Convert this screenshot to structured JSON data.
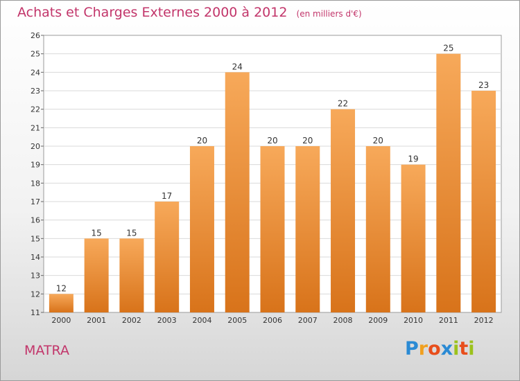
{
  "header": {
    "title": "Achats et Charges Externes 2000 à 2012",
    "subtitle": "(en milliers d'€)"
  },
  "footer": {
    "entity": "MATRA",
    "logo_letters": [
      "P",
      "r",
      "o",
      "x",
      "i",
      "t",
      "i"
    ],
    "logo_colors": [
      "#2a8ad4",
      "#f0a020",
      "#e84e1b",
      "#2a8ad4",
      "#9cc21c",
      "#e84e1b",
      "#9cc21c"
    ]
  },
  "chart_data": {
    "type": "bar",
    "categories": [
      "2000",
      "2001",
      "2002",
      "2003",
      "2004",
      "2005",
      "2006",
      "2007",
      "2008",
      "2009",
      "2010",
      "2011",
      "2012"
    ],
    "values": [
      12,
      15,
      15,
      17,
      20,
      24,
      20,
      20,
      22,
      20,
      19,
      25,
      23
    ],
    "ylim": [
      11,
      26
    ],
    "yticks": [
      11,
      12,
      13,
      14,
      15,
      16,
      17,
      18,
      19,
      20,
      21,
      22,
      23,
      24,
      25,
      26
    ],
    "grid": true,
    "bar_color_top": "#f7a95a",
    "bar_color_bottom": "#d8731a"
  }
}
